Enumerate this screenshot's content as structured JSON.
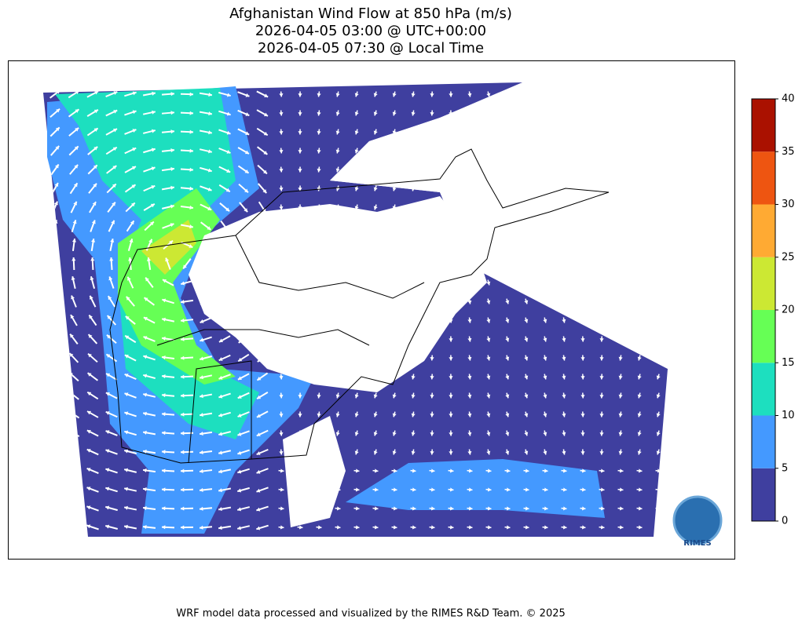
{
  "header": {
    "title": [
      "Afghanistan Wind Flow at 850 hPa (m/s)",
      "2026-04-05 03:00 @ UTC+00:00",
      "2026-04-05 07:30 @ Local Time"
    ]
  },
  "colorbar": {
    "ticks": [
      0,
      5,
      10,
      15,
      20,
      25,
      30,
      35,
      40
    ],
    "colors": [
      "#3f3f9f",
      "#4499ff",
      "#1ddfbf",
      "#66ff55",
      "#cce833",
      "#ffaa33",
      "#ee5511",
      "#aa1100"
    ]
  },
  "logo": "RIMES",
  "footer": "WRF model data processed and visualized by the RIMES R&D Team. © 2025"
}
